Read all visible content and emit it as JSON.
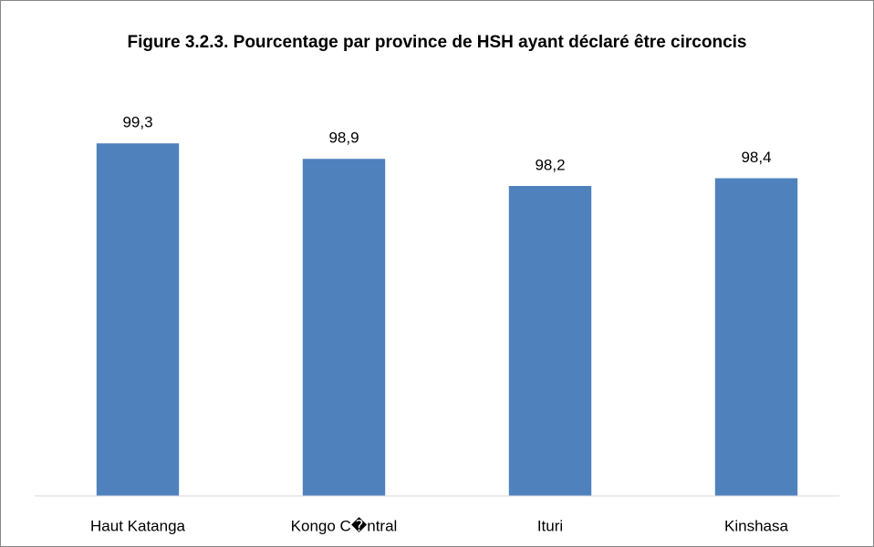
{
  "chart_data": {
    "type": "bar",
    "title": "Figure 3.2.3. Pourcentage par province de HSH ayant déclaré être circoncis",
    "categories": [
      "Haut Katanga",
      "Kongo C�ntral",
      "Ituri",
      "Kinshasa"
    ],
    "values": [
      99.3,
      98.9,
      98.2,
      98.4
    ],
    "value_labels": [
      "99,3",
      "98,9",
      "98,2",
      "98,4"
    ],
    "color": "#4f81bd",
    "ylim": [
      90.2,
      101
    ]
  }
}
